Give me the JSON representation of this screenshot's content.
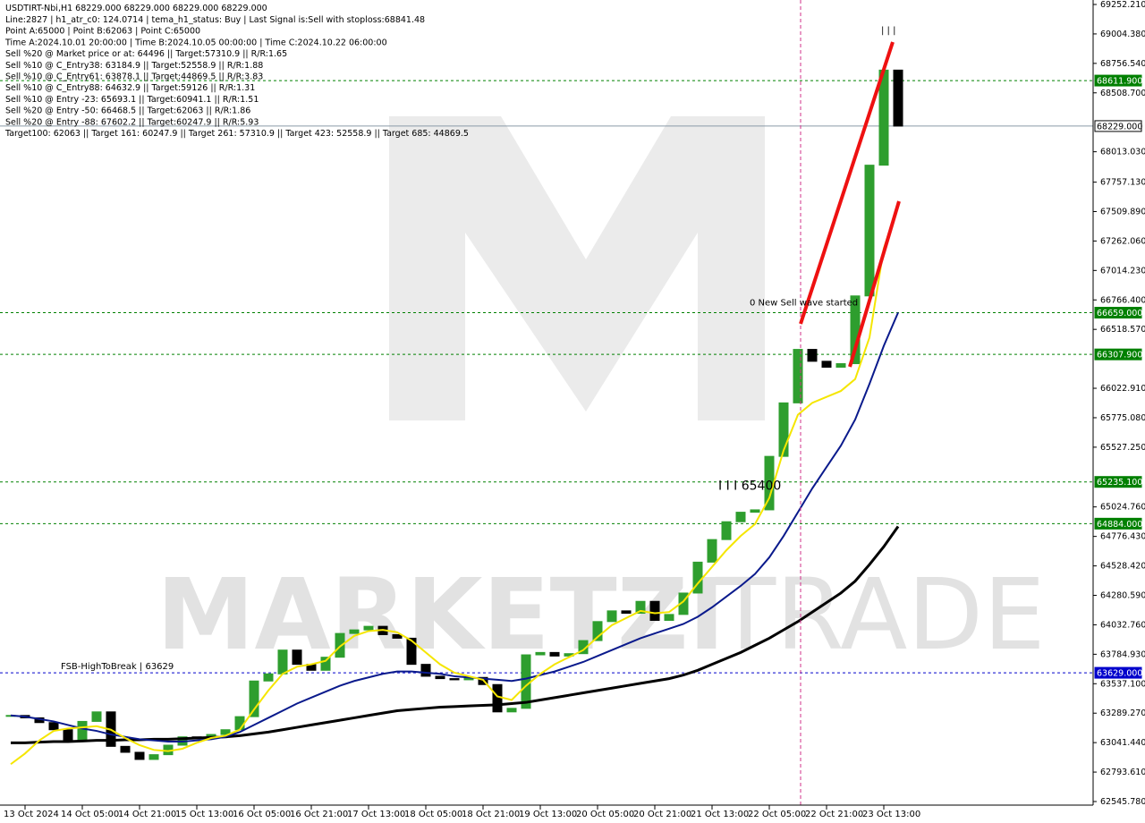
{
  "chart_data": {
    "type": "candlestick",
    "title": "USDTIRT-Nbi,H1  68229.000 68229.000 68229.000 68229.000",
    "info_lines": [
      "Line:2827  | h1_atr_c0: 124.0714  | tema_h1_status: Buy  | Last Signal is:Sell with stoploss:68841.48",
      "Point A:65000  | Point B:62063  | Point C:65000",
      "Time A:2024.10.01 20:00:00  | Time B:2024.10.05 00:00:00  | Time C:2024.10.22 06:00:00",
      "Sell %20 @ Market price or at: 64496  || Target:57310.9  || R/R:1.65",
      "Sell %10 @ C_Entry38: 63184.9  || Target:52558.9  || R/R:1.88",
      "Sell %10 @ C_Entry61: 63878.1  || Target:44869.5  || R/R:3.83",
      "Sell %10 @ C_Entry88: 64632.9  || Target:59126  || R/R:1.31",
      "Sell %10 @ Entry -23: 65693.1  || Target:60941.1  || R/R:1.51",
      "Sell %20 @ Entry -50: 66468.5  || Target:62063  || R/R:1.86",
      "Sell %20 @ Entry -88: 67602.2  || Target:60247.9  || R/R:5.93",
      "Target100: 62063  || Target 161: 60247.9  || Target 261: 57310.9  || Target 423: 52558.9  || Target 685: 44869.5"
    ],
    "watermark": [
      "MARKETZI",
      "TRADE"
    ],
    "annotations": [
      {
        "text": "0 New Sell wave started",
        "value": 66720
      },
      {
        "text": "I I I 65400",
        "value": 65170
      },
      {
        "text": "| | |",
        "value": 69010
      },
      {
        "text": "FSB-HighToBreak | 63629",
        "value": 63660
      }
    ],
    "categories": [
      null,
      "13 Oct 2024",
      null,
      null,
      null,
      "14 Oct 05:00",
      null,
      null,
      null,
      "14 Oct 21:00",
      null,
      null,
      null,
      "15 Oct 13:00",
      null,
      null,
      null,
      "16 Oct 05:00",
      null,
      null,
      null,
      "16 Oct 21:00",
      null,
      null,
      null,
      "17 Oct 13:00",
      null,
      null,
      null,
      "18 Oct 05:00",
      null,
      null,
      null,
      "18 Oct 21:00",
      null,
      null,
      null,
      "19 Oct 13:00",
      null,
      null,
      null,
      "20 Oct 05:00",
      null,
      null,
      null,
      "20 Oct 21:00",
      null,
      null,
      null,
      "21 Oct 13:00",
      null,
      null,
      null,
      "22 Oct 05:00",
      null,
      null,
      null,
      "22 Oct 21:00",
      null,
      null,
      null,
      "23 Oct 13:00",
      null
    ],
    "close": [
      63270,
      63250,
      63210,
      63150,
      63060,
      63220,
      63300,
      63010,
      62960,
      62900,
      62940,
      63020,
      63090,
      63080,
      63110,
      63150,
      63260,
      63560,
      63620,
      63820,
      63700,
      63650,
      63760,
      63960,
      63990,
      64020,
      63950,
      63920,
      63700,
      63600,
      63580,
      63570,
      63590,
      63530,
      63300,
      63330,
      63780,
      63800,
      63770,
      63790,
      63900,
      64060,
      64150,
      64130,
      64230,
      64070,
      64120,
      64300,
      64560,
      64750,
      64900,
      64980,
      65000,
      65450,
      65900,
      66350,
      66250,
      66200,
      66230,
      66800,
      67900,
      68700,
      68229
    ],
    "up_color": "#2e9e2e",
    "down_color": "#000000",
    "moving_averages": [
      {
        "color": "#000000",
        "width": 3,
        "values": [
          63040,
          63040,
          63045,
          63050,
          63050,
          63055,
          63060,
          63060,
          63065,
          63065,
          63070,
          63070,
          63075,
          63080,
          63085,
          63090,
          63100,
          63115,
          63130,
          63150,
          63170,
          63190,
          63210,
          63230,
          63250,
          63270,
          63290,
          63310,
          63320,
          63330,
          63340,
          63345,
          63350,
          63355,
          63360,
          63370,
          63380,
          63400,
          63420,
          63440,
          63460,
          63480,
          63500,
          63520,
          63540,
          63560,
          63580,
          63610,
          63650,
          63700,
          63750,
          63800,
          63860,
          63920,
          63990,
          64060,
          64140,
          64220,
          64300,
          64400,
          64540,
          64690,
          64860
        ]
      },
      {
        "color": "#0a1a8c",
        "width": 2,
        "values": [
          63270,
          63260,
          63240,
          63220,
          63190,
          63160,
          63140,
          63110,
          63090,
          63070,
          63060,
          63050,
          63050,
          63060,
          63070,
          63090,
          63130,
          63190,
          63250,
          63310,
          63370,
          63420,
          63470,
          63520,
          63560,
          63590,
          63620,
          63640,
          63640,
          63630,
          63620,
          63600,
          63590,
          63580,
          63570,
          63560,
          63580,
          63610,
          63640,
          63680,
          63720,
          63770,
          63820,
          63870,
          63920,
          63960,
          64000,
          64040,
          64100,
          64180,
          64270,
          64360,
          64460,
          64600,
          64780,
          64980,
          65180,
          65360,
          65540,
          65760,
          66060,
          66380,
          66660
        ]
      },
      {
        "color": "#f5e600",
        "width": 2,
        "values": [
          62860,
          62950,
          63060,
          63140,
          63160,
          63170,
          63180,
          63150,
          63080,
          63020,
          62980,
          62970,
          62990,
          63040,
          63080,
          63100,
          63150,
          63320,
          63480,
          63620,
          63680,
          63700,
          63730,
          63850,
          63940,
          63980,
          63990,
          63970,
          63900,
          63800,
          63700,
          63630,
          63600,
          63570,
          63430,
          63400,
          63520,
          63620,
          63700,
          63760,
          63820,
          63930,
          64030,
          64090,
          64150,
          64130,
          64140,
          64230,
          64380,
          64520,
          64660,
          64780,
          64880,
          65100,
          65500,
          65800,
          65900,
          65950,
          66000,
          66100,
          66450,
          67200,
          67560
        ]
      }
    ],
    "levels": [
      {
        "value": 68611.9,
        "label": "68611.900",
        "color": "#008000",
        "style": "dashed"
      },
      {
        "value": 68229,
        "label": "68229.000",
        "color": "#8a9aa8",
        "style": "solid"
      },
      {
        "value": 66659,
        "label": "66659.000",
        "color": "#008000",
        "style": "dashed"
      },
      {
        "value": 66307.9,
        "label": "66307.900",
        "color": "#008000",
        "style": "dashed"
      },
      {
        "value": 65235.1,
        "label": "65235.100",
        "color": "#008000",
        "style": "dashed"
      },
      {
        "value": 64884,
        "label": "64884.000",
        "color": "#008000",
        "style": "dashed"
      },
      {
        "value": 63629,
        "label": "63629.000",
        "color": "#0000cc",
        "style": "dashed"
      }
    ],
    "ylim": [
      62515.7,
      69289.8
    ],
    "yticks": [
      {
        "value": 69252.21,
        "label": "69252.210"
      },
      {
        "value": 69004.38,
        "label": "69004.380"
      },
      {
        "value": 68756.54,
        "label": "68756.540"
      },
      {
        "value": 68508.7,
        "label": "68508.700"
      },
      {
        "value": 68013.03,
        "label": "68013.030"
      },
      {
        "value": 67757.13,
        "label": "67757.130"
      },
      {
        "value": 67509.89,
        "label": "67509.890"
      },
      {
        "value": 67262.06,
        "label": "67262.060"
      },
      {
        "value": 67014.23,
        "label": "67014.230"
      },
      {
        "value": 66766.4,
        "label": "66766.400"
      },
      {
        "value": 66518.57,
        "label": "66518.570"
      },
      {
        "value": 66022.91,
        "label": "66022.910"
      },
      {
        "value": 65775.08,
        "label": "65775.080"
      },
      {
        "value": 65527.25,
        "label": "65527.250"
      },
      {
        "value": 65024.76,
        "label": "65024.760"
      },
      {
        "value": 64776.43,
        "label": "64776.430"
      },
      {
        "value": 64528.42,
        "label": "64528.420"
      },
      {
        "value": 64280.59,
        "label": "64280.590"
      },
      {
        "value": 64032.76,
        "label": "64032.760"
      },
      {
        "value": 63784.93,
        "label": "63784.930"
      },
      {
        "value": 63537.1,
        "label": "63537.100"
      },
      {
        "value": 63289.27,
        "label": "63289.270"
      },
      {
        "value": 63041.44,
        "label": "63041.440"
      },
      {
        "value": 62793.61,
        "label": "62793.610"
      },
      {
        "value": 62545.78,
        "label": "62545.780"
      }
    ],
    "grid": false
  }
}
